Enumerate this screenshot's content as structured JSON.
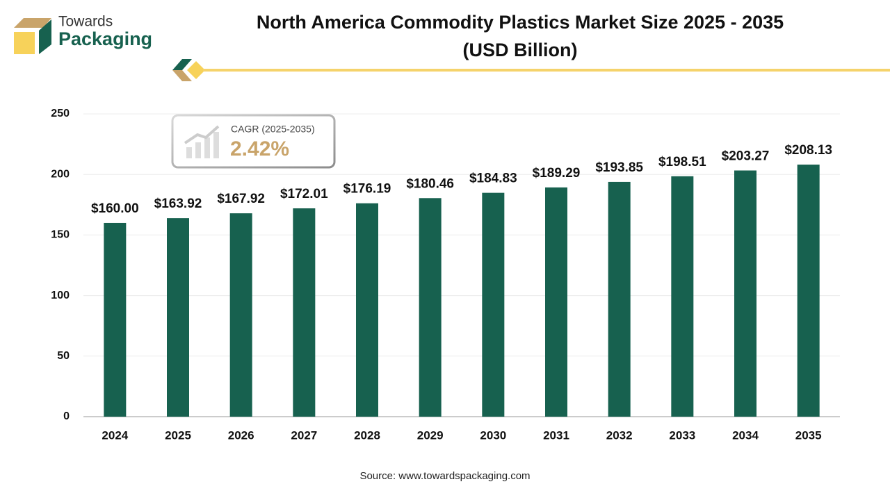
{
  "logo": {
    "line1": "Towards",
    "line2": "Packaging"
  },
  "chart_data": {
    "type": "bar",
    "title": [
      "North America Commodity Plastics Market Size 2025 - 2035",
      "(USD Billion)"
    ],
    "categories": [
      "2024",
      "2025",
      "2026",
      "2027",
      "2028",
      "2029",
      "2030",
      "2031",
      "2032",
      "2033",
      "2034",
      "2035"
    ],
    "values": [
      160.0,
      163.92,
      167.92,
      172.01,
      176.19,
      180.46,
      184.83,
      189.29,
      193.85,
      198.51,
      203.27,
      208.13
    ],
    "value_labels": [
      "$160.00",
      "$163.92",
      "$167.92",
      "$172.01",
      "$176.19",
      "$180.46",
      "$184.83",
      "$189.29",
      "$193.85",
      "$198.51",
      "$203.27",
      "$208.13"
    ],
    "color": "#17614f",
    "ylim": [
      0,
      250
    ],
    "yticks": [
      0,
      50,
      100,
      150,
      200,
      250
    ],
    "grid": true,
    "annotation": {
      "title": "CAGR (2025-2035)",
      "text": "2.42%"
    },
    "source": "Source: www.towardspackaging.com"
  }
}
